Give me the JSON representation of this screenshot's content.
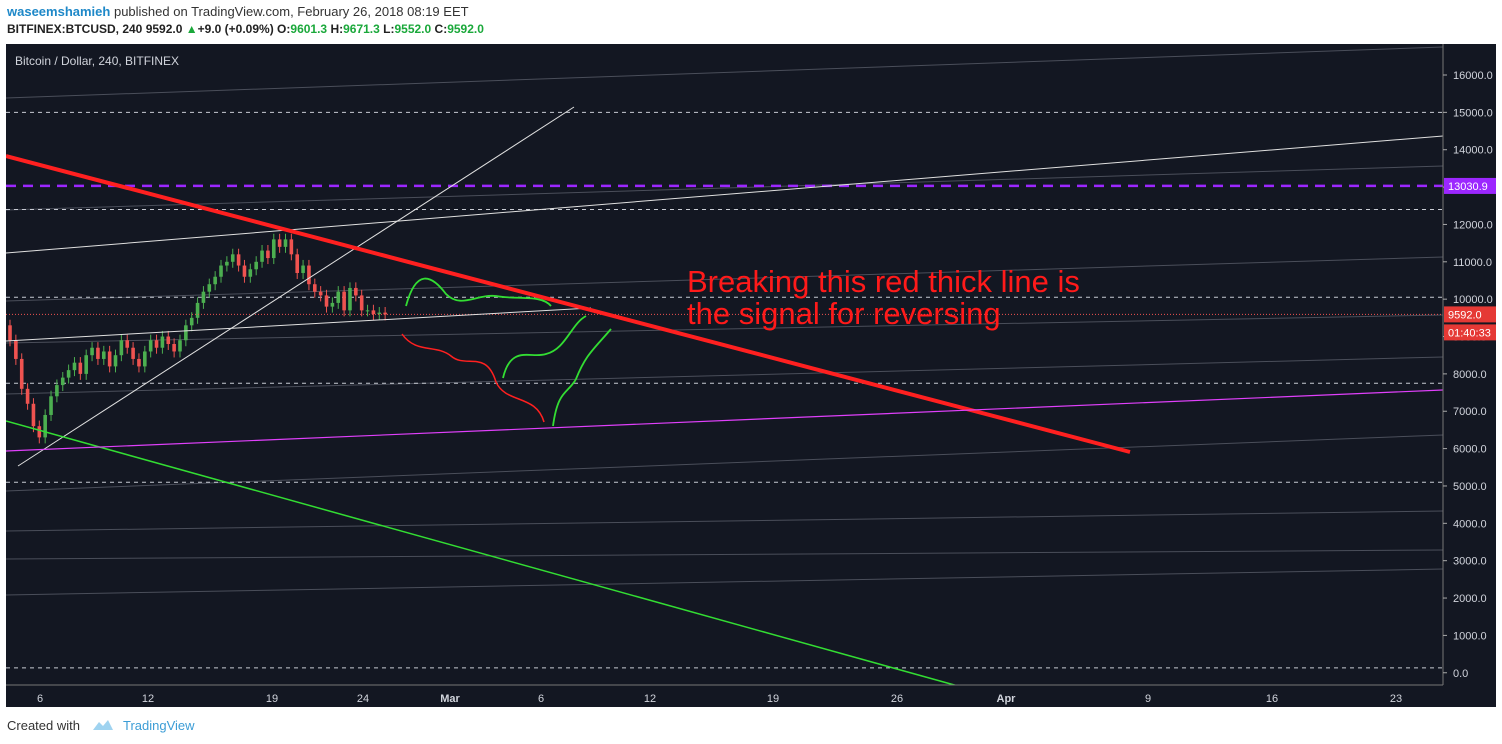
{
  "header": {
    "username": "waseemshamieh",
    "published_text": "published on TradingView.com, February 26, 2018 08:19 EET",
    "symbol": "BITFINEX:BTCUSD, 240",
    "last_price": "9592.0",
    "change": "+9.0 (+0.09%)",
    "open_label": "O:",
    "open": "9601.3",
    "high_label": "H:",
    "high": "9671.3",
    "low_label": "L:",
    "low": "9552.0",
    "close_label": "C:",
    "close": "9592.0"
  },
  "footer": {
    "created_with": "Created with",
    "brand": "TradingView"
  },
  "colors": {
    "background": "#131722",
    "up_candle": "#4caf50",
    "down_candle": "#ef5350",
    "red_trendline": "#ff2020",
    "green_trendline": "#33dd33",
    "purple_level": "#9c27ff",
    "magenta_line": "#e040fb",
    "annotation": "#ff1a1a"
  },
  "chart_data": {
    "type": "line",
    "title": "Bitcoin / Dollar, 240, BITFINEX",
    "xlabel": "",
    "ylabel": "",
    "ylim": [
      -300,
      16500
    ],
    "x_tick_labels": [
      "6",
      "12",
      "19",
      "24",
      "Mar",
      "6",
      "12",
      "19",
      "26",
      "Apr",
      "9",
      "16",
      "23"
    ],
    "y_tick_labels": [
      "0.0",
      "1000.0",
      "2000.0",
      "3000.0",
      "4000.0",
      "5000.0",
      "6000.0",
      "7000.0",
      "8000.0",
      "9000.0",
      "10000.0",
      "11000.0",
      "12000.0",
      "13000.0",
      "14000.0",
      "15000.0",
      "16000.0"
    ],
    "y_ticks": [
      0,
      1000,
      2000,
      3000,
      4000,
      5000,
      6000,
      7000,
      8000,
      9000,
      10000,
      11000,
      12000,
      13000,
      14000,
      15000,
      16000
    ],
    "price_label": "9592.0",
    "countdown_label": "01:40:33",
    "level_label": "13030.9",
    "level_value": 13030.9,
    "current_price": 9592.0,
    "horizontal_dashed_levels": [
      15000,
      12400,
      10050,
      7750,
      5100,
      130
    ],
    "annotation_line1": "Breaking this red thick line is",
    "annotation_line2": "the signal for reversing",
    "candles_price_path": {
      "dates": [
        "Feb 5",
        "Feb 6",
        "Feb 7",
        "Feb 9",
        "Feb 12",
        "Feb 14",
        "Feb 16",
        "Feb 18",
        "Feb 20",
        "Feb 21",
        "Feb 22",
        "Feb 24",
        "Feb 25",
        "Feb 26"
      ],
      "close": [
        8500,
        6200,
        7600,
        8300,
        8500,
        9400,
        10100,
        11000,
        11400,
        10800,
        10100,
        9900,
        9600,
        9592
      ]
    },
    "trendlines": [
      {
        "name": "red thick",
        "from": {
          "date": "Feb 5",
          "y": 13700
        },
        "to": {
          "date": "Apr 8",
          "y": 5900
        }
      },
      {
        "name": "green",
        "from": {
          "date": "Feb 5",
          "y": 6700
        },
        "to": {
          "date": "Mar 31",
          "y": -350
        }
      },
      {
        "name": "magenta",
        "from": {
          "date": "Feb 5",
          "y": 5900
        },
        "to": {
          "date": "Apr 29",
          "y": 7600
        }
      }
    ]
  }
}
